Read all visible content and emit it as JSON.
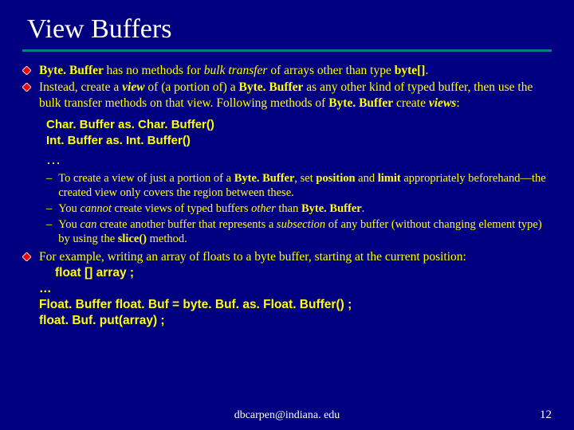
{
  "title": "View Buffers",
  "rule_color": "#008080",
  "background_color": "#000080",
  "text_color": "#ffff00",
  "title_color": "#ffffff",
  "footer_color": "#ffffff",
  "diamond_fill": "#ff0000",
  "diamond_stroke": "#ffffff",
  "bullets": [
    {
      "parts": [
        {
          "t": "Byte. Buffer ",
          "b": true
        },
        {
          "t": "has no methods for "
        },
        {
          "t": "bulk transfer",
          "i": true
        },
        {
          "t": " of arrays other than type "
        },
        {
          "t": "byte[]",
          "b": true
        },
        {
          "t": "."
        }
      ]
    },
    {
      "parts": [
        {
          "t": "Instead, create a "
        },
        {
          "t": "view",
          "b": true,
          "i": true
        },
        {
          "t": " of (a portion of) a "
        },
        {
          "t": "Byte. Buffer",
          "b": true
        },
        {
          "t": " as any other kind of typed buffer, then use the bulk transfer methods on that view.  Following methods of "
        },
        {
          "t": "Byte. Buffer",
          "b": true
        },
        {
          "t": " create "
        },
        {
          "t": "views",
          "b": true,
          "i": true
        },
        {
          "t": ":"
        }
      ]
    }
  ],
  "codeblock": {
    "lines": [
      "Char. Buffer as. Char. Buffer()",
      "Int. Buffer as. Int. Buffer()"
    ]
  },
  "ellipsis": "…",
  "sub_bullets": [
    {
      "parts": [
        {
          "t": "To create a view of just a portion of a "
        },
        {
          "t": "Byte. Buffer",
          "b": true
        },
        {
          "t": ", set "
        },
        {
          "t": "position",
          "b": true
        },
        {
          "t": " and "
        },
        {
          "t": "limit",
          "b": true
        },
        {
          "t": " appropriately beforehand—the created view only covers the region between these."
        }
      ]
    },
    {
      "parts": [
        {
          "t": "You "
        },
        {
          "t": "cannot",
          "i": true
        },
        {
          "t": " create views of typed buffers "
        },
        {
          "t": "other",
          "i": true
        },
        {
          "t": " than "
        },
        {
          "t": "Byte. Buffer",
          "b": true
        },
        {
          "t": "."
        }
      ]
    },
    {
      "parts": [
        {
          "t": "You "
        },
        {
          "t": "can",
          "i": true
        },
        {
          "t": " create another buffer that represents a "
        },
        {
          "t": "subsection",
          "i": true
        },
        {
          "t": " of any buffer (without changing element type) by using the "
        },
        {
          "t": "slice()",
          "b": true
        },
        {
          "t": " method."
        }
      ]
    }
  ],
  "example": {
    "intro": "For example, writing an array of floats to a byte buffer, starting at the current position:",
    "code": [
      "float [] array ;",
      "…",
      "Float. Buffer float. Buf = byte. Buf. as. Float. Buffer() ;",
      "float. Buf. put(array) ;"
    ]
  },
  "footer_email": "dbcarpen@indiana. edu",
  "slide_number": "12"
}
